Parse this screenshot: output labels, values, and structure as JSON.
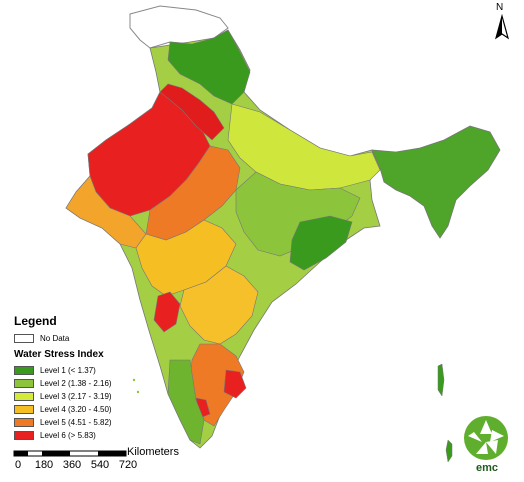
{
  "north_label": "N",
  "legend": {
    "title": "Legend",
    "no_data": {
      "label": "No Data",
      "color": "#ffffff"
    },
    "index_title": "Water Stress Index",
    "levels": [
      {
        "label": "Level 1 (< 1.37)",
        "color": "#3a9a1e"
      },
      {
        "label": "Level 2 (1.38 - 2.16)",
        "color": "#8cc43c"
      },
      {
        "label": "Level 3 (2.17 - 3.19)",
        "color": "#d4ea3a"
      },
      {
        "label": "Level 4 (3.20 - 4.50)",
        "color": "#f5be22"
      },
      {
        "label": "Level 5 (4.51 - 5.82)",
        "color": "#ef7a26"
      },
      {
        "label": "Level 6 (> 5.83)",
        "color": "#e82020"
      }
    ]
  },
  "scale": {
    "unit": "Kilometers",
    "ticks": [
      "0",
      "180",
      "360",
      "540",
      "720"
    ]
  },
  "logo": {
    "text": "emc",
    "color": "#5fae2e"
  }
}
